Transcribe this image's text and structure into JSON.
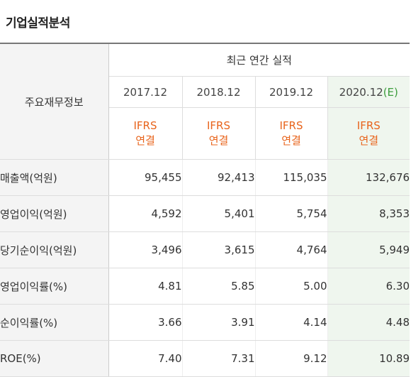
{
  "title": "기업실적분석",
  "header": {
    "corner": "주요재무정보",
    "group": "최근 연간 실적",
    "years": [
      "2017.12",
      "2018.12",
      "2019.12",
      "2020.12"
    ],
    "estimate_mark": "(E)",
    "basis_line1": "IFRS",
    "basis_line2": "연결"
  },
  "rows": [
    {
      "label": "매출액(억원)",
      "values": [
        "95,455",
        "92,413",
        "115,035",
        "132,676"
      ]
    },
    {
      "label": "영업이익(억원)",
      "values": [
        "4,592",
        "5,401",
        "5,754",
        "8,353"
      ]
    },
    {
      "label": "당기순이익(억원)",
      "values": [
        "3,496",
        "3,615",
        "4,764",
        "5,949"
      ]
    },
    {
      "label": "영업이익률(%)",
      "values": [
        "4.81",
        "5.85",
        "5.00",
        "6.30"
      ]
    },
    {
      "label": "순이익률(%)",
      "values": [
        "3.66",
        "3.91",
        "4.14",
        "4.48"
      ]
    },
    {
      "label": "ROE(%)",
      "values": [
        "7.40",
        "7.31",
        "9.12",
        "10.89"
      ]
    }
  ],
  "colors": {
    "ifrs": "#e8641c",
    "estimate_bg": "#eff6ee",
    "estimate_mark": "#3d9d3d"
  }
}
